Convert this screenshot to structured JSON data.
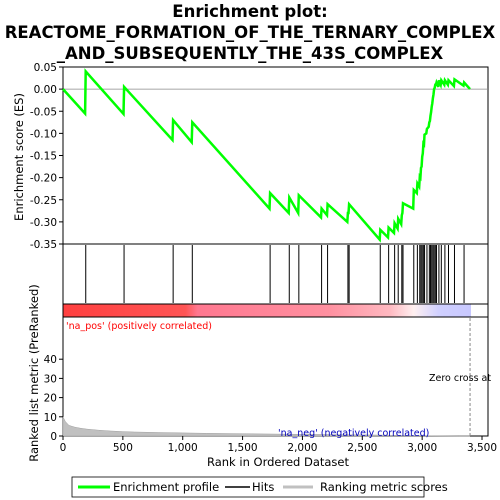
{
  "chart_data": {
    "type": "line",
    "title_lines": [
      "Enrichment plot:",
      "REACTOME_FORMATION_OF_THE_TERNARY_COMPLEX",
      "_AND_SUBSEQUENTLY_THE_43S_COMPLEX"
    ],
    "ylabel_top": "Enrichment score (ES)",
    "ylabel_bottom": "Ranked list metric (PreRanked)",
    "xlabel": "Rank in Ordered Dataset",
    "top_ylim": [
      -0.35,
      0.05
    ],
    "top_yticks": [
      0.05,
      0.0,
      -0.05,
      -0.1,
      -0.15,
      -0.2,
      -0.25,
      -0.3,
      -0.35
    ],
    "top_ytick_labels": [
      "0.05",
      "0.00",
      "-0.05",
      "-0.10",
      "-0.15",
      "-0.20",
      "-0.25",
      "-0.30",
      "-0.35"
    ],
    "bottom_ylim": [
      0,
      50
    ],
    "bottom_yticks": [
      0,
      10,
      20,
      30,
      40
    ],
    "bottom_ytick_labels": [
      "0",
      "10",
      "20",
      "30",
      "40"
    ],
    "xlim": [
      0,
      3550
    ],
    "xticks": [
      0,
      500,
      1000,
      1500,
      2000,
      2500,
      3000,
      3500
    ],
    "xtick_labels": [
      "0",
      "500",
      "1,000",
      "1,500",
      "2,000",
      "2,500",
      "3,000",
      "3,500"
    ],
    "hits": [
      190,
      510,
      920,
      1080,
      1730,
      1890,
      1970,
      2160,
      2210,
      2380,
      2390,
      2650,
      2720,
      2770,
      2800,
      2830,
      2840,
      2930,
      2960,
      2980,
      2990,
      3000,
      3010,
      3020,
      3040,
      3060,
      3070,
      3080,
      3090,
      3100,
      3110,
      3120,
      3140,
      3160,
      3190,
      3220,
      3270,
      3350
    ],
    "series": [
      {
        "name": "Enrichment profile",
        "color": "#00ff00",
        "x": [
          0,
          185,
          190,
          505,
          510,
          915,
          920,
          1075,
          1080,
          1725,
          1730,
          1885,
          1890,
          1965,
          1970,
          2155,
          2160,
          2205,
          2210,
          2375,
          2380,
          2385,
          2390,
          2645,
          2650,
          2715,
          2720,
          2765,
          2770,
          2795,
          2800,
          2825,
          2830,
          2835,
          2840,
          2925,
          2930,
          2955,
          2960,
          2975,
          2980,
          2985,
          2990,
          2995,
          3000,
          3005,
          3010,
          3015,
          3020,
          3035,
          3040,
          3055,
          3060,
          3065,
          3070,
          3075,
          3080,
          3085,
          3090,
          3095,
          3100,
          3105,
          3110,
          3115,
          3120,
          3135,
          3140,
          3155,
          3160,
          3185,
          3190,
          3215,
          3220,
          3265,
          3270,
          3345,
          3350,
          3400
        ],
        "y": [
          0.0,
          -0.055,
          0.04,
          -0.056,
          0.005,
          -0.115,
          -0.07,
          -0.12,
          -0.075,
          -0.27,
          -0.235,
          -0.28,
          -0.245,
          -0.28,
          -0.24,
          -0.29,
          -0.27,
          -0.285,
          -0.26,
          -0.3,
          -0.28,
          -0.28,
          -0.26,
          -0.34,
          -0.318,
          -0.335,
          -0.313,
          -0.325,
          -0.303,
          -0.315,
          -0.293,
          -0.305,
          -0.285,
          -0.28,
          -0.258,
          -0.27,
          -0.228,
          -0.235,
          -0.213,
          -0.22,
          -0.198,
          -0.2,
          -0.178,
          -0.175,
          -0.153,
          -0.145,
          -0.123,
          -0.125,
          -0.103,
          -0.1,
          -0.09,
          -0.085,
          -0.075,
          -0.072,
          -0.06,
          -0.052,
          -0.04,
          -0.032,
          -0.02,
          -0.012,
          0.0,
          0.003,
          0.01,
          0.01,
          0.015,
          0.005,
          0.02,
          0.01,
          0.02,
          0.01,
          0.02,
          0.01,
          0.02,
          0.007,
          0.022,
          0.008,
          0.015,
          0.0
        ]
      }
    ],
    "ranked_metric": {
      "x": [
        0,
        20,
        50,
        100,
        150,
        200,
        300,
        400,
        500,
        600,
        800,
        1000,
        1200,
        1500,
        1800,
        2000,
        2200,
        2400,
        2600,
        2800,
        2900,
        3000,
        3100,
        3200,
        3300,
        3400
      ],
      "y": [
        10,
        7.5,
        5.5,
        4.6,
        4.0,
        3.6,
        3.0,
        2.6,
        2.3,
        2.1,
        1.8,
        1.6,
        1.4,
        1.2,
        1.0,
        0.9,
        0.8,
        0.65,
        0.5,
        0.35,
        0.28,
        0.2,
        0.12,
        0.06,
        0.02,
        0.0
      ]
    },
    "heat_bar": {
      "split": 1120,
      "zero_cross_rank": 3400
    },
    "annotations": {
      "pos": "'na_pos' (positively correlated)",
      "neg": "'na_neg' (negatively correlated)",
      "zero": "Zero cross at"
    },
    "legend": [
      {
        "label": "Enrichment profile",
        "color": "#00ff00"
      },
      {
        "label": "Hits",
        "color": "#000000"
      },
      {
        "label": "Ranking metric scores",
        "color": "#c0c0c0"
      }
    ],
    "colors": {
      "pos_text": "#ff0000",
      "neg_text": "#0000bb",
      "heat_pos": "#ff3c3c",
      "heat_mid": "#ffb0b0",
      "heat_neg": "#a0a0ff",
      "zero_line": "#888888",
      "metric_fill": "#c0c0c0"
    }
  }
}
